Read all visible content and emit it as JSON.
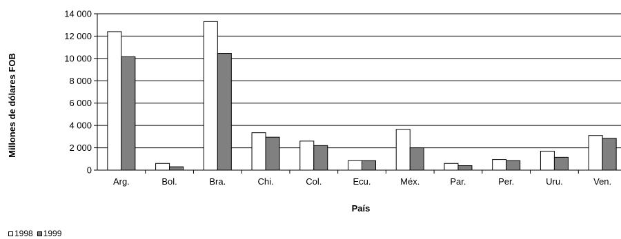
{
  "chart_data": {
    "type": "bar",
    "title": "",
    "xlabel": "País",
    "ylabel": "Millones de dólares FOB",
    "categories": [
      "Arg.",
      "Bol.",
      "Bra.",
      "Chi.",
      "Col.",
      "Ecu.",
      "Méx.",
      "Par.",
      "Per.",
      "Uru.",
      "Ven."
    ],
    "series": [
      {
        "name": "1998",
        "color": "#ffffff",
        "values": [
          12400,
          600,
          13300,
          3350,
          2600,
          850,
          3650,
          600,
          950,
          1700,
          3100
        ]
      },
      {
        "name": "1999",
        "color": "#808080",
        "values": [
          10150,
          300,
          10450,
          2950,
          2200,
          850,
          2000,
          400,
          850,
          1150,
          2850
        ]
      }
    ],
    "ylim": [
      0,
      14000
    ],
    "yticks": [
      0,
      2000,
      4000,
      6000,
      8000,
      10000,
      12000,
      14000
    ],
    "ytick_labels": [
      "0",
      "2 000",
      "4 000",
      "6 000",
      "8 000",
      "10 000",
      "12 000",
      "14 000"
    ],
    "grid": true,
    "legend": "bottom-left"
  }
}
